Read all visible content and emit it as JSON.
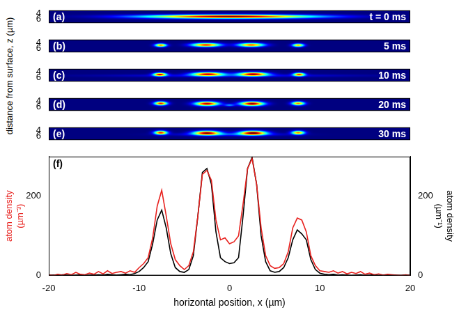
{
  "image_panels_ylabel": "distance from surface, z (µm)",
  "chart_data": [
    {
      "type": "heatmap",
      "panel": "(a)",
      "annotation": "t = 0 ms",
      "xlim": [
        -20,
        20
      ],
      "ylim": [
        3,
        7.4
      ],
      "yticks": [
        4,
        6
      ],
      "tick_labels": "y",
      "grid": false,
      "color_range": [
        0,
        1
      ],
      "clouds": [
        {
          "x": 0,
          "z": 5.1,
          "sigma_x": 6.5,
          "sigma_z": 0.45,
          "amplitude": 1
        }
      ]
    },
    {
      "type": "heatmap",
      "panel": "(b)",
      "annotation": "5 ms",
      "xlim": [
        -20,
        20
      ],
      "ylim": [
        3,
        7.4
      ],
      "yticks": [
        4,
        6
      ],
      "tick_labels": "y",
      "grid": false,
      "color_range": [
        0,
        1
      ],
      "clouds": [
        {
          "x": -7.6,
          "z": 4.9,
          "sigma_x": 0.45,
          "sigma_z": 0.4,
          "amplitude": 0.75
        },
        {
          "x": -2.6,
          "z": 4.8,
          "sigma_x": 1.1,
          "sigma_z": 0.45,
          "amplitude": 0.85
        },
        {
          "x": 2.4,
          "z": 4.8,
          "sigma_x": 1.0,
          "sigma_z": 0.45,
          "amplitude": 0.8
        },
        {
          "x": 7.6,
          "z": 4.9,
          "sigma_x": 0.45,
          "sigma_z": 0.4,
          "amplitude": 0.7
        }
      ]
    },
    {
      "type": "heatmap",
      "panel": "(c)",
      "annotation": "10 ms",
      "xlim": [
        -20,
        20
      ],
      "ylim": [
        3,
        7.4
      ],
      "yticks": [
        4,
        6
      ],
      "tick_labels": "y",
      "grid": false,
      "color_range": [
        0,
        1
      ],
      "clouds": [
        {
          "x": -7.7,
          "z": 4.9,
          "sigma_x": 0.5,
          "sigma_z": 0.4,
          "amplitude": 0.9
        },
        {
          "x": -2.4,
          "z": 4.8,
          "sigma_x": 1.2,
          "sigma_z": 0.45,
          "amplitude": 0.9
        },
        {
          "x": 2.6,
          "z": 4.8,
          "sigma_x": 1.1,
          "sigma_z": 0.45,
          "amplitude": 0.95
        },
        {
          "x": 7.7,
          "z": 4.9,
          "sigma_x": 0.45,
          "sigma_z": 0.4,
          "amplitude": 0.8
        },
        {
          "x": 0,
          "z": 5.3,
          "sigma_x": 9,
          "sigma_z": 0.35,
          "amplitude": 0.12
        }
      ]
    },
    {
      "type": "heatmap",
      "panel": "(d)",
      "annotation": "20 ms",
      "xlim": [
        -20,
        20
      ],
      "ylim": [
        3,
        7.4
      ],
      "yticks": [
        4,
        6
      ],
      "tick_labels": "y",
      "grid": false,
      "color_range": [
        0,
        1
      ],
      "clouds": [
        {
          "x": -7.6,
          "z": 4.8,
          "sigma_x": 0.5,
          "sigma_z": 0.45,
          "amplitude": 0.85
        },
        {
          "x": -2.5,
          "z": 4.9,
          "sigma_x": 0.9,
          "sigma_z": 0.5,
          "amplitude": 0.95
        },
        {
          "x": 2.5,
          "z": 4.9,
          "sigma_x": 0.9,
          "sigma_z": 0.5,
          "amplitude": 1
        },
        {
          "x": 7.6,
          "z": 4.8,
          "sigma_x": 0.5,
          "sigma_z": 0.45,
          "amplitude": 0.75
        },
        {
          "x": 0,
          "z": 5.4,
          "sigma_x": 0.4,
          "sigma_z": 0.3,
          "amplitude": 0.25
        }
      ]
    },
    {
      "type": "heatmap",
      "panel": "(e)",
      "annotation": "30 ms",
      "xlim": [
        -20,
        20
      ],
      "ylim": [
        3,
        7.4
      ],
      "yticks": [
        4,
        6
      ],
      "tick_labels": "y",
      "grid": false,
      "color_range": [
        0,
        1
      ],
      "clouds": [
        {
          "x": -7.6,
          "z": 4.8,
          "sigma_x": 0.5,
          "sigma_z": 0.45,
          "amplitude": 0.85
        },
        {
          "x": -2.5,
          "z": 4.9,
          "sigma_x": 1.0,
          "sigma_z": 0.5,
          "amplitude": 0.95
        },
        {
          "x": 2.6,
          "z": 4.9,
          "sigma_x": 1.0,
          "sigma_z": 0.5,
          "amplitude": 1
        },
        {
          "x": 7.6,
          "z": 4.8,
          "sigma_x": 0.5,
          "sigma_z": 0.45,
          "amplitude": 0.75
        },
        {
          "x": 0,
          "z": 5.4,
          "sigma_x": 4,
          "sigma_z": 0.35,
          "amplitude": 0.18
        }
      ]
    },
    {
      "type": "line",
      "panel": "(f)",
      "xlabel": "horizontal position, x (µm)",
      "ylabel": [
        "atom density",
        "(µm⁻³)"
      ],
      "y2label": [
        "atom density",
        "(µm⁻¹)"
      ],
      "xlim": [
        -20,
        20
      ],
      "xticks": [
        -20,
        -10,
        0,
        10,
        20
      ],
      "ylim": [
        0,
        300
      ],
      "yticks": [
        0,
        200
      ],
      "y2lim": [
        0,
        300
      ],
      "y2ticks": [
        0,
        200
      ],
      "grid": false,
      "x": [
        -20,
        -19.5,
        -19,
        -18.5,
        -18,
        -17.5,
        -17,
        -16.5,
        -16,
        -15.5,
        -15,
        -14.5,
        -14,
        -13.5,
        -13,
        -12.5,
        -12,
        -11.5,
        -11,
        -10.5,
        -10,
        -9.5,
        -9,
        -8.5,
        -8,
        -7.5,
        -7,
        -6.5,
        -6,
        -5.5,
        -5,
        -4.5,
        -4,
        -3.5,
        -3,
        -2.5,
        -2,
        -1.5,
        -1,
        -0.5,
        0,
        0.5,
        1,
        1.5,
        2,
        2.5,
        3,
        3.5,
        4,
        4.5,
        5,
        5.5,
        6,
        6.5,
        7,
        7.5,
        8,
        8.5,
        9,
        9.5,
        10,
        10.5,
        11,
        11.5,
        12,
        12.5,
        13,
        13.5,
        14,
        14.5,
        15,
        15.5,
        16,
        16.5,
        17,
        17.5,
        18,
        18.5,
        19,
        19.5,
        20
      ],
      "series": [
        {
          "color": "#e8211e",
          "axis": "y",
          "values": [
            2,
            0,
            3,
            1,
            5,
            2,
            8,
            3,
            2,
            6,
            3,
            10,
            4,
            12,
            5,
            8,
            10,
            6,
            12,
            8,
            20,
            30,
            45,
            95,
            175,
            215,
            150,
            80,
            40,
            25,
            15,
            25,
            60,
            150,
            255,
            265,
            240,
            140,
            90,
            95,
            80,
            85,
            100,
            180,
            270,
            295,
            230,
            120,
            50,
            25,
            18,
            20,
            30,
            60,
            120,
            145,
            140,
            110,
            50,
            25,
            12,
            10,
            8,
            12,
            6,
            10,
            4,
            8,
            5,
            10,
            3,
            6,
            2,
            4,
            1,
            3,
            2,
            1,
            0,
            2,
            0
          ]
        },
        {
          "color": "#000000",
          "axis": "y2",
          "values": [
            0,
            1,
            0,
            2,
            1,
            0,
            1,
            2,
            0,
            1,
            1,
            2,
            1,
            3,
            2,
            1,
            2,
            3,
            2,
            5,
            10,
            20,
            35,
            80,
            140,
            165,
            120,
            55,
            20,
            10,
            8,
            15,
            50,
            150,
            260,
            270,
            230,
            110,
            45,
            35,
            30,
            32,
            45,
            150,
            270,
            298,
            230,
            100,
            35,
            12,
            8,
            10,
            20,
            45,
            90,
            115,
            105,
            90,
            40,
            15,
            6,
            3,
            2,
            3,
            1,
            2,
            1,
            0,
            1,
            2,
            0,
            1,
            2,
            0,
            1,
            0,
            1,
            0,
            0,
            1,
            0
          ]
        }
      ]
    }
  ]
}
